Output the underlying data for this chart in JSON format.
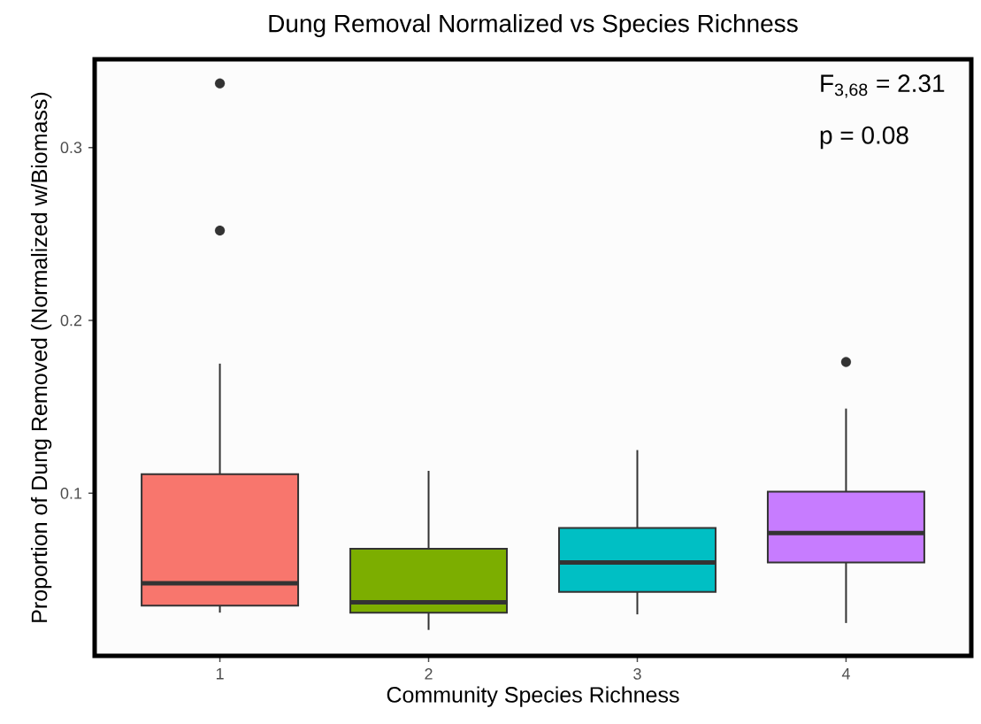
{
  "chart_data": {
    "type": "box",
    "title": "Dung Removal Normalized vs Species Richness",
    "xlabel": "Community Species Richness",
    "ylabel": "Proportion of Dung Removed (Normalized w/Biomass)",
    "categories": [
      "1",
      "2",
      "3",
      "4"
    ],
    "colors": [
      "#f8766d",
      "#7cae00",
      "#00bfc4",
      "#c77cff"
    ],
    "boxes": [
      {
        "low": 0.031,
        "q1": 0.035,
        "median": 0.048,
        "q3": 0.111,
        "high": 0.175,
        "outliers": [
          0.337,
          0.252
        ]
      },
      {
        "low": 0.021,
        "q1": 0.031,
        "median": 0.037,
        "q3": 0.068,
        "high": 0.113
      },
      {
        "low": 0.03,
        "q1": 0.043,
        "median": 0.06,
        "q3": 0.08,
        "high": 0.125
      },
      {
        "low": 0.025,
        "q1": 0.06,
        "median": 0.077,
        "q3": 0.101,
        "high": 0.149,
        "outliers": [
          0.176
        ]
      }
    ],
    "ylim": [
      0.006,
      0.351
    ],
    "yticks": [
      0.1,
      0.2,
      0.3
    ],
    "annotations": [
      "F$_{3,68}$ = 2.31",
      "p = 0.08"
    ]
  }
}
